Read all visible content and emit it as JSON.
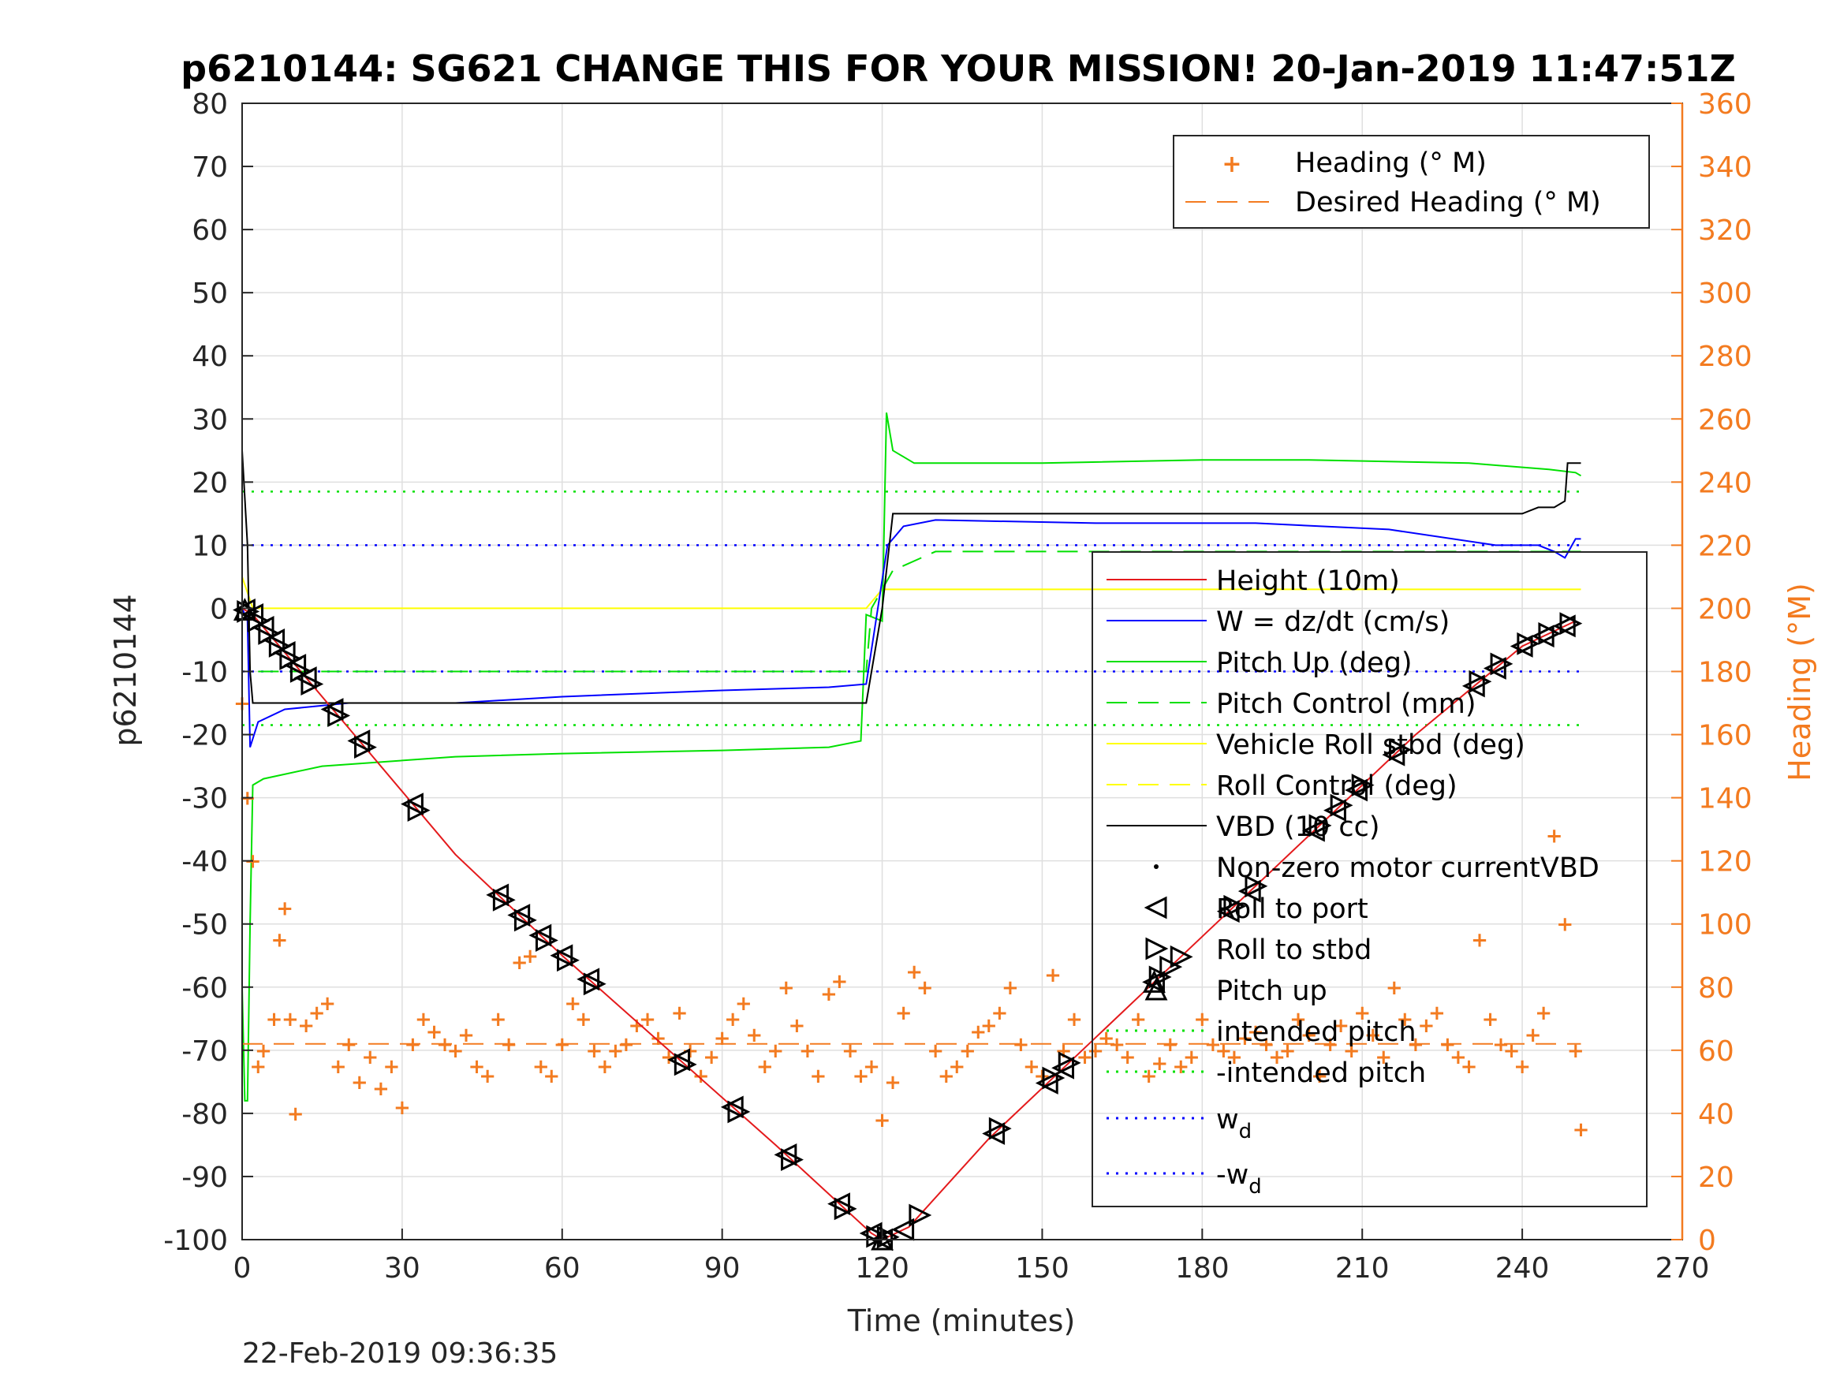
{
  "title": "p6210144: SG621 CHANGE THIS FOR YOUR MISSION! 20-Jan-2019 11:47:51Z",
  "footer_timestamp": "22-Feb-2019 09:36:35",
  "chart_data": {
    "type": "line",
    "xlabel": "Time (minutes)",
    "ylabel_left": "p6210144",
    "ylabel_right": "Heading (°M)",
    "xlim": [
      0,
      270
    ],
    "ylim_left": [
      -100,
      80
    ],
    "ylim_right": [
      0,
      360
    ],
    "x_ticks": [
      "0",
      "30",
      "60",
      "90",
      "120",
      "150",
      "180",
      "210",
      "240",
      "270"
    ],
    "y_ticks_left": [
      "80",
      "70",
      "60",
      "50",
      "40",
      "30",
      "20",
      "10",
      "0",
      "-10",
      "-20",
      "-30",
      "-40",
      "-50",
      "-60",
      "-70",
      "-80",
      "-90",
      "-100"
    ],
    "y_ticks_right": [
      "360",
      "340",
      "320",
      "300",
      "280",
      "260",
      "240",
      "220",
      "200",
      "180",
      "160",
      "140",
      "120",
      "100",
      "80",
      "60",
      "40",
      "20",
      "0"
    ],
    "grid": true,
    "colors": {
      "height": "#e41a1c",
      "w": "#0000ff",
      "pitch": "#00e000",
      "roll": "#ffff00",
      "vbd": "#000000",
      "heading": "#f37b20",
      "wd": "#0000ff",
      "intended_pitch": "#00e000"
    },
    "legend_right_axis": {
      "position": "top-right",
      "entries": [
        "Heading (° M)",
        "Desired Heading (° M)"
      ]
    },
    "legend_left_axis": {
      "position": "lower-right",
      "entries": [
        "Height (10m)",
        "W = dz/dt (cm/s)",
        "Pitch Up (deg)",
        "Pitch Control (mm)",
        "Vehicle Roll stbd (deg)",
        "Roll Control (deg)",
        "VBD (10 cc)",
        "Non-zero motor currentVBD",
        "Roll to port",
        "Roll to stbd",
        "Pitch up",
        "intended pitch",
        "-intended pitch",
        "w",
        "-w"
      ],
      "subscript": "d"
    },
    "series": [
      {
        "name": "Height (10m)",
        "x": [
          0,
          2,
          10,
          20,
          40,
          60,
          80,
          100,
          118,
          120,
          125,
          140,
          160,
          180,
          200,
          220,
          240,
          250
        ],
        "values": [
          0,
          -1,
          -9,
          -19,
          -39,
          -55,
          -70,
          -85,
          -99,
          -100,
          -98,
          -84,
          -68,
          -52,
          -36,
          -20,
          -6,
          -2
        ]
      },
      {
        "name": "W = dz/dt (cm/s)",
        "x": [
          0,
          1,
          1.5,
          3,
          8,
          20,
          40,
          60,
          90,
          110,
          117,
          121,
          124,
          130,
          160,
          190,
          215,
          235,
          243,
          246,
          248,
          250,
          251
        ],
        "values": [
          0,
          -2,
          -22,
          -18,
          -16,
          -15,
          -15,
          -14,
          -13,
          -12.5,
          -12,
          10,
          13,
          14,
          13.5,
          13.5,
          12.5,
          10,
          10,
          9,
          8,
          11,
          11
        ]
      },
      {
        "name": "Pitch Up (deg)",
        "x": [
          0,
          0.5,
          1,
          1.5,
          2,
          4,
          15,
          40,
          60,
          90,
          110,
          116,
          117,
          120,
          120.8,
          122,
          126,
          150,
          180,
          200,
          230,
          245,
          250,
          251
        ],
        "values": [
          -60,
          -78,
          -78,
          -50,
          -28,
          -27,
          -25,
          -23.5,
          -23,
          -22.5,
          -22,
          -21,
          -1,
          -2,
          31,
          25,
          23,
          23,
          23.5,
          23.5,
          23,
          22,
          21.5,
          21
        ]
      },
      {
        "name": "Pitch Control (mm)",
        "x": [
          3,
          117,
          118,
          122,
          130,
          160,
          200,
          240,
          251
        ],
        "values": [
          -10,
          -10,
          0,
          6,
          9,
          9,
          9,
          9,
          9
        ]
      },
      {
        "name": "Vehicle Roll stbd (deg)",
        "x": [
          0,
          2,
          20,
          60,
          100,
          117,
          120,
          125,
          160,
          200,
          240,
          251
        ],
        "values": [
          5,
          0,
          0,
          0,
          0,
          0,
          3,
          3,
          3,
          3,
          3,
          3
        ]
      },
      {
        "name": "VBD (10 cc)",
        "x": [
          0,
          1,
          1.5,
          2,
          10,
          60,
          100,
          117,
          120,
          122,
          130,
          180,
          230,
          240,
          243,
          246,
          248,
          248.5,
          250,
          251
        ],
        "values": [
          25,
          10,
          -10,
          -15,
          -15,
          -15,
          -15,
          -15,
          0,
          15,
          15,
          15,
          15,
          15,
          16,
          16,
          17,
          23,
          23,
          23
        ]
      },
      {
        "name": "Heading (° M)",
        "x": [
          0,
          1,
          2,
          3,
          4,
          6,
          7,
          8,
          9,
          10,
          12,
          14,
          16,
          18,
          20,
          22,
          24,
          26,
          28,
          30,
          32,
          34,
          36,
          38,
          40,
          42,
          44,
          46,
          48,
          50,
          52,
          54,
          56,
          58,
          60,
          62,
          64,
          66,
          68,
          70,
          72,
          74,
          76,
          78,
          80,
          82,
          84,
          86,
          88,
          90,
          92,
          94,
          96,
          98,
          100,
          102,
          104,
          106,
          108,
          110,
          112,
          114,
          116,
          118,
          120,
          122,
          124,
          126,
          128,
          130,
          132,
          134,
          136,
          138,
          140,
          142,
          144,
          146,
          148,
          150,
          152,
          154,
          156,
          158,
          160,
          162,
          164,
          166,
          168,
          170,
          172,
          174,
          176,
          178,
          180,
          182,
          184,
          186,
          188,
          190,
          192,
          194,
          196,
          198,
          200,
          202,
          204,
          206,
          208,
          210,
          212,
          214,
          216,
          218,
          220,
          222,
          224,
          226,
          228,
          230,
          232,
          234,
          236,
          238,
          240,
          242,
          244,
          246,
          248,
          250,
          251
        ],
        "values": [
          170,
          140,
          120,
          55,
          60,
          70,
          95,
          105,
          70,
          40,
          68,
          72,
          75,
          55,
          62,
          50,
          58,
          48,
          55,
          42,
          62,
          70,
          66,
          62,
          60,
          65,
          55,
          52,
          70,
          62,
          88,
          90,
          55,
          52,
          62,
          75,
          70,
          60,
          55,
          60,
          62,
          68,
          70,
          64,
          58,
          72,
          60,
          52,
          58,
          64,
          70,
          75,
          65,
          55,
          60,
          80,
          68,
          60,
          52,
          78,
          82,
          60,
          52,
          55,
          38,
          50,
          72,
          85,
          80,
          60,
          52,
          55,
          60,
          66,
          68,
          72,
          80,
          62,
          55,
          52,
          84,
          60,
          70,
          58,
          60,
          64,
          62,
          58,
          70,
          52,
          56,
          62,
          55,
          58,
          70,
          62,
          60,
          58,
          64,
          66,
          62,
          58,
          60,
          70,
          65,
          52,
          62,
          68,
          60,
          72,
          65,
          58,
          80,
          70,
          62,
          68,
          72,
          62,
          58,
          55,
          95,
          70,
          62,
          60,
          55,
          65,
          72,
          128,
          100,
          60,
          35
        ]
      },
      {
        "name": "Desired Heading (° M)",
        "x": [
          0,
          251
        ],
        "values": [
          62,
          62
        ]
      }
    ],
    "markers": {
      "roll_to_port_x": [
        0.5,
        2,
        4,
        6,
        8,
        10,
        12,
        17,
        22,
        32,
        48,
        52,
        56,
        60,
        65,
        82,
        92,
        102,
        112,
        118,
        120,
        124,
        141,
        151,
        154,
        171,
        185,
        189,
        201,
        205,
        209,
        216,
        231,
        235,
        240,
        244,
        248
      ],
      "roll_to_stbd_x": [
        1,
        3,
        5,
        7,
        9,
        11,
        13,
        18,
        23,
        33,
        49,
        53,
        57,
        61,
        66,
        83,
        93,
        103,
        113,
        119,
        121,
        127,
        142,
        152,
        155,
        172,
        174,
        176,
        186,
        190,
        202,
        206,
        210,
        217,
        232,
        236,
        241,
        245,
        249
      ],
      "pitch_up_x": [
        0.5,
        120,
        171
      ]
    },
    "intended_pitch": [
      18.5,
      -18.5
    ],
    "w_d": [
      10,
      -10
    ]
  }
}
